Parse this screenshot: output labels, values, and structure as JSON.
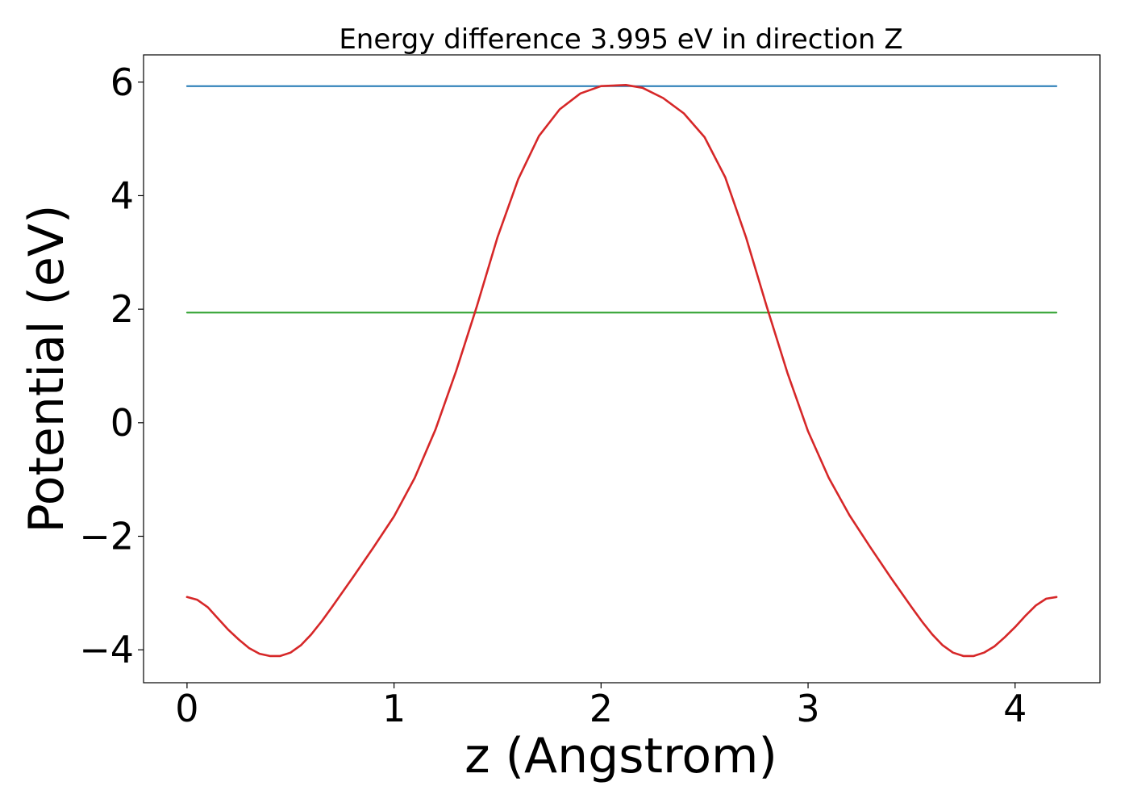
{
  "chart_data": {
    "type": "line",
    "title": "Energy difference 3.995 eV in direction Z",
    "xlabel": "z (Angstrom)",
    "ylabel": "Potential (eV)",
    "xlim": [
      -0.21,
      4.41
    ],
    "ylim": [
      -4.58,
      6.48
    ],
    "xticks": [
      0,
      1,
      2,
      3,
      4
    ],
    "xtick_labels": [
      "0",
      "1",
      "2",
      "3",
      "4"
    ],
    "yticks": [
      -4,
      -2,
      0,
      2,
      4,
      6
    ],
    "ytick_labels": [
      "−4",
      "−2",
      "0",
      "2",
      "4",
      "6"
    ],
    "grid": false,
    "series": [
      {
        "color": "#1f77b4",
        "x": [
          0,
          4.2
        ],
        "y": [
          5.93,
          5.93
        ]
      },
      {
        "color": "#2ca02c",
        "x": [
          0,
          4.2
        ],
        "y": [
          1.94,
          1.94
        ]
      },
      {
        "color": "#d62728",
        "x": [
          0,
          0.05,
          0.1,
          0.15,
          0.2,
          0.25,
          0.3,
          0.35,
          0.4,
          0.45,
          0.5,
          0.55,
          0.6,
          0.65,
          0.7,
          0.8,
          0.9,
          1.0,
          1.1,
          1.2,
          1.3,
          1.4,
          1.5,
          1.6,
          1.7,
          1.8,
          1.9,
          2.0,
          2.12,
          2.2,
          2.3,
          2.4,
          2.5,
          2.6,
          2.7,
          2.8,
          2.9,
          3.0,
          3.1,
          3.2,
          3.3,
          3.4,
          3.5,
          3.55,
          3.6,
          3.65,
          3.7,
          3.75,
          3.8,
          3.85,
          3.9,
          3.95,
          4.0,
          4.05,
          4.1,
          4.15,
          4.2
        ],
        "y": [
          -3.07,
          -3.12,
          -3.25,
          -3.45,
          -3.65,
          -3.82,
          -3.97,
          -4.07,
          -4.11,
          -4.11,
          -4.05,
          -3.92,
          -3.73,
          -3.5,
          -3.25,
          -2.73,
          -2.2,
          -1.65,
          -0.97,
          -0.12,
          0.91,
          2.05,
          3.27,
          4.29,
          5.05,
          5.52,
          5.8,
          5.93,
          5.95,
          5.9,
          5.72,
          5.45,
          5.03,
          4.32,
          3.27,
          2.05,
          0.88,
          -0.15,
          -0.97,
          -1.63,
          -2.19,
          -2.73,
          -3.25,
          -3.5,
          -3.73,
          -3.92,
          -4.05,
          -4.11,
          -4.11,
          -4.05,
          -3.94,
          -3.78,
          -3.6,
          -3.4,
          -3.22,
          -3.1,
          -3.07
        ]
      }
    ]
  }
}
